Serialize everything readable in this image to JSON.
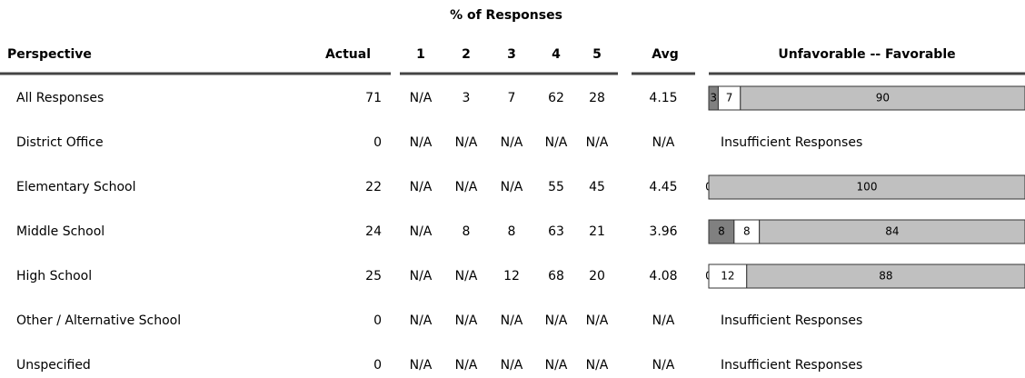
{
  "header": {
    "title": "% of Responses",
    "columns": [
      "Perspective",
      "Actual",
      "1",
      "2",
      "3",
      "4",
      "5",
      "Avg",
      "Unfavorable -- Favorable"
    ]
  },
  "table": {
    "rows": [
      {
        "perspective": "All Responses",
        "actual": 71,
        "scores": [
          "N/A",
          3,
          7,
          62,
          28
        ],
        "avg": 4.15,
        "bar": [
          3,
          7,
          90
        ]
      },
      {
        "perspective": "District Office",
        "actual": 0,
        "scores": [
          "N/A",
          "N/A",
          "N/A",
          "N/A",
          "N/A"
        ],
        "avg": "N/A",
        "note": "Insufficient Responses"
      },
      {
        "perspective": "Elementary School",
        "actual": 22,
        "scores": [
          "N/A",
          "N/A",
          "N/A",
          55,
          45
        ],
        "avg": 4.45,
        "bar": [
          0,
          null,
          100
        ]
      },
      {
        "perspective": "Middle School",
        "actual": 24,
        "scores": [
          "N/A",
          8,
          8,
          63,
          21
        ],
        "avg": 3.96,
        "bar": [
          8,
          8,
          84
        ]
      },
      {
        "perspective": "High School",
        "actual": 25,
        "scores": [
          "N/A",
          "N/A",
          12,
          68,
          20
        ],
        "avg": 4.08,
        "bar": [
          0,
          12,
          88
        ]
      },
      {
        "perspective": "Other / Alternative School",
        "actual": 0,
        "scores": [
          "N/A",
          "N/A",
          "N/A",
          "N/A",
          "N/A"
        ],
        "avg": "N/A",
        "note": "Insufficient Responses"
      },
      {
        "perspective": "Unspecified",
        "actual": 0,
        "scores": [
          "N/A",
          "N/A",
          "N/A",
          "N/A",
          "N/A"
        ],
        "avg": "N/A",
        "note": "Insufficient Responses"
      }
    ]
  }
}
